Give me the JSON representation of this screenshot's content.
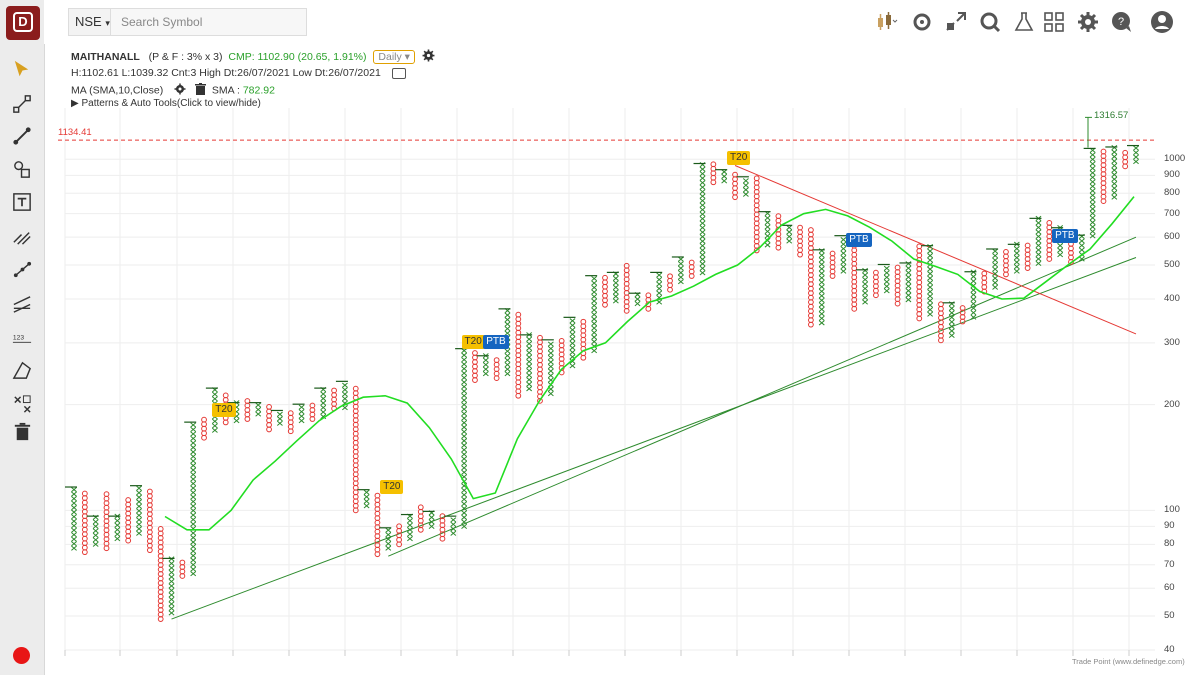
{
  "toolbar": {
    "exchange": "NSE",
    "search_placeholder": "Search Symbol",
    "icons": [
      "candle-chart-icon",
      "gear-alt-icon",
      "expand-icon",
      "settings-search-icon",
      "lab-icon",
      "layout-grid-icon",
      "gear-icon",
      "chat-icon",
      "user-icon"
    ]
  },
  "sidebar": {
    "tools": [
      "pointer-icon",
      "line-icon",
      "trend-line-icon",
      "shape-icon",
      "text-tool-icon",
      "fib-icon",
      "path-icon",
      "channel-icon",
      "measure-icon",
      "projection-icon",
      "magnet-icon",
      "trash-icon"
    ]
  },
  "info": {
    "symbol": "MAITHANALL",
    "params": "(P & F : 3% x 3)",
    "cmp": "CMP: 1102.90 (20.65, 1.91%)",
    "timeframe": "Daily",
    "ohlc": "H:1102.61 L:1039.32 Cnt:3 High Dt:26/07/2021 Low Dt:26/07/2021",
    "ma_label": "MA (SMA,10,Close)",
    "sma_label": "SMA :",
    "sma_value": "782.92",
    "patterns": "▶  Patterns & Auto Tools(Click to view/hide)"
  },
  "chart_data": {
    "type": "point-and-figure",
    "box_reversal": "3% x 3",
    "y_scale": "log",
    "ylim": [
      40,
      1400
    ],
    "y_ticks": [
      "1000",
      "900",
      "800",
      "700",
      "600",
      "500",
      "400",
      "300",
      "200",
      "100",
      "90",
      "80",
      "70",
      "60",
      "50",
      "40"
    ],
    "hline_label": "1134.41",
    "high_label": "1316.57",
    "columns": [
      {
        "t": "X",
        "lo": 78,
        "hi": 115
      },
      {
        "t": "O",
        "lo": 76,
        "hi": 112
      },
      {
        "t": "X",
        "lo": 80,
        "hi": 95
      },
      {
        "t": "O",
        "lo": 78,
        "hi": 112
      },
      {
        "t": "X",
        "lo": 83,
        "hi": 95
      },
      {
        "t": "O",
        "lo": 82,
        "hi": 108
      },
      {
        "t": "X",
        "lo": 86,
        "hi": 116
      },
      {
        "t": "O",
        "lo": 77,
        "hi": 112
      },
      {
        "t": "O",
        "lo": 49,
        "hi": 88
      },
      {
        "t": "X",
        "lo": 51,
        "hi": 72
      },
      {
        "t": "O",
        "lo": 65,
        "hi": 71
      },
      {
        "t": "X",
        "lo": 66,
        "hi": 176
      },
      {
        "t": "O",
        "lo": 161,
        "hi": 182
      },
      {
        "t": "X",
        "lo": 169,
        "hi": 220
      },
      {
        "t": "O",
        "lo": 178,
        "hi": 215
      },
      {
        "t": "X",
        "lo": 180,
        "hi": 200
      },
      {
        "t": "O",
        "lo": 182,
        "hi": 202
      },
      {
        "t": "X",
        "lo": 188,
        "hi": 200
      },
      {
        "t": "O",
        "lo": 170,
        "hi": 198
      },
      {
        "t": "X",
        "lo": 177,
        "hi": 190
      },
      {
        "t": "O",
        "lo": 168,
        "hi": 188
      },
      {
        "t": "X",
        "lo": 180,
        "hi": 198
      },
      {
        "t": "O",
        "lo": 182,
        "hi": 198
      },
      {
        "t": "X",
        "lo": 185,
        "hi": 220
      },
      {
        "t": "O",
        "lo": 195,
        "hi": 220
      },
      {
        "t": "X",
        "lo": 196,
        "hi": 230
      },
      {
        "t": "O",
        "lo": 100,
        "hi": 222
      },
      {
        "t": "X",
        "lo": 103,
        "hi": 113
      },
      {
        "t": "O",
        "lo": 75,
        "hi": 109
      },
      {
        "t": "X",
        "lo": 78,
        "hi": 88
      },
      {
        "t": "O",
        "lo": 80,
        "hi": 89
      },
      {
        "t": "X",
        "lo": 83,
        "hi": 96
      },
      {
        "t": "O",
        "lo": 88,
        "hi": 102
      },
      {
        "t": "X",
        "lo": 90,
        "hi": 98
      },
      {
        "t": "O",
        "lo": 83,
        "hi": 96
      },
      {
        "t": "X",
        "lo": 86,
        "hi": 95
      },
      {
        "t": "X",
        "lo": 90,
        "hi": 285
      },
      {
        "t": "O",
        "lo": 235,
        "hi": 281
      },
      {
        "t": "X",
        "lo": 245,
        "hi": 272
      },
      {
        "t": "O",
        "lo": 238,
        "hi": 270
      },
      {
        "t": "X",
        "lo": 245,
        "hi": 370
      },
      {
        "t": "O",
        "lo": 212,
        "hi": 365
      },
      {
        "t": "X",
        "lo": 222,
        "hi": 312
      },
      {
        "t": "O",
        "lo": 205,
        "hi": 310
      },
      {
        "t": "X",
        "lo": 215,
        "hi": 302
      },
      {
        "t": "O",
        "lo": 247,
        "hi": 300
      },
      {
        "t": "X",
        "lo": 258,
        "hi": 350
      },
      {
        "t": "O",
        "lo": 272,
        "hi": 348
      },
      {
        "t": "X",
        "lo": 285,
        "hi": 460
      },
      {
        "t": "O",
        "lo": 385,
        "hi": 455
      },
      {
        "t": "X",
        "lo": 395,
        "hi": 470
      },
      {
        "t": "O",
        "lo": 370,
        "hi": 492
      },
      {
        "t": "X",
        "lo": 388,
        "hi": 410
      },
      {
        "t": "O",
        "lo": 375,
        "hi": 412
      },
      {
        "t": "X",
        "lo": 392,
        "hi": 470
      },
      {
        "t": "O",
        "lo": 425,
        "hi": 468
      },
      {
        "t": "X",
        "lo": 448,
        "hi": 520
      },
      {
        "t": "O",
        "lo": 465,
        "hi": 512
      },
      {
        "t": "X",
        "lo": 475,
        "hi": 960
      },
      {
        "t": "O",
        "lo": 860,
        "hi": 955
      },
      {
        "t": "X",
        "lo": 868,
        "hi": 922
      },
      {
        "t": "O",
        "lo": 780,
        "hi": 910
      },
      {
        "t": "X",
        "lo": 795,
        "hi": 880
      },
      {
        "t": "O",
        "lo": 550,
        "hi": 870
      },
      {
        "t": "X",
        "lo": 570,
        "hi": 700
      },
      {
        "t": "O",
        "lo": 560,
        "hi": 695
      },
      {
        "t": "X",
        "lo": 585,
        "hi": 640
      },
      {
        "t": "O",
        "lo": 535,
        "hi": 630
      },
      {
        "t": "O",
        "lo": 338,
        "hi": 620
      },
      {
        "t": "X",
        "lo": 342,
        "hi": 545
      },
      {
        "t": "O",
        "lo": 465,
        "hi": 540
      },
      {
        "t": "X",
        "lo": 480,
        "hi": 598
      },
      {
        "t": "O",
        "lo": 375,
        "hi": 582
      },
      {
        "t": "X",
        "lo": 392,
        "hi": 478
      },
      {
        "t": "O",
        "lo": 410,
        "hi": 480
      },
      {
        "t": "X",
        "lo": 422,
        "hi": 495
      },
      {
        "t": "O",
        "lo": 388,
        "hi": 490
      },
      {
        "t": "X",
        "lo": 398,
        "hi": 500
      },
      {
        "t": "O",
        "lo": 352,
        "hi": 560
      },
      {
        "t": "X",
        "lo": 362,
        "hi": 560
      },
      {
        "t": "O",
        "lo": 305,
        "hi": 385
      },
      {
        "t": "X",
        "lo": 315,
        "hi": 385
      },
      {
        "t": "O",
        "lo": 345,
        "hi": 380
      },
      {
        "t": "X",
        "lo": 355,
        "hi": 472
      },
      {
        "t": "O",
        "lo": 420,
        "hi": 470
      },
      {
        "t": "X",
        "lo": 432,
        "hi": 548
      },
      {
        "t": "O",
        "lo": 470,
        "hi": 545
      },
      {
        "t": "X",
        "lo": 480,
        "hi": 565
      },
      {
        "t": "O",
        "lo": 490,
        "hi": 562
      },
      {
        "t": "X",
        "lo": 505,
        "hi": 670
      },
      {
        "t": "O",
        "lo": 520,
        "hi": 660
      },
      {
        "t": "X",
        "lo": 535,
        "hi": 630
      },
      {
        "t": "O",
        "lo": 510,
        "hi": 615
      },
      {
        "t": "X",
        "lo": 520,
        "hi": 600
      },
      {
        "t": "X",
        "lo": 605,
        "hi": 1060
      },
      {
        "t": "O",
        "lo": 760,
        "hi": 1040
      },
      {
        "t": "X",
        "lo": 780,
        "hi": 1070
      },
      {
        "t": "O",
        "lo": 955,
        "hi": 1050
      },
      {
        "t": "X",
        "lo": 985,
        "hi": 1080
      }
    ],
    "sma": [
      96,
      88,
      88,
      100,
      122,
      138,
      158,
      180,
      198,
      210,
      212,
      202,
      172,
      140,
      108,
      112,
      160,
      205,
      252,
      285,
      300,
      345,
      392,
      408,
      435,
      470,
      500,
      560,
      650,
      700,
      720,
      690,
      640,
      585,
      520,
      495,
      470,
      420,
      400,
      402,
      448,
      500,
      555,
      655,
      782.92
    ],
    "trend_line_1": {
      "from": [
        9,
        49
      ],
      "to": [
        98,
        525
      ]
    },
    "trend_line_2": {
      "from": [
        29,
        74
      ],
      "to": [
        98,
        600
      ]
    },
    "resistance_line": {
      "from": [
        61,
        960
      ],
      "to": [
        98,
        318
      ]
    },
    "tags": [
      {
        "label": "T20",
        "col": 13.5,
        "price": 192
      },
      {
        "label": "T20",
        "col": 29,
        "price": 116
      },
      {
        "label": "T20",
        "col": 36.5,
        "price": 300
      },
      {
        "label": "PTB",
        "col": 38.5,
        "price": 300
      },
      {
        "label": "T20",
        "col": 61,
        "price": 1005
      },
      {
        "label": "PTB",
        "col": 72,
        "price": 585
      },
      {
        "label": "PTB",
        "col": 91,
        "price": 600
      }
    ],
    "colors": {
      "x": "#2e8b2e",
      "o": "#e53935",
      "sma": "#22dd22",
      "trend": "#2e8b2e",
      "resistance": "#e53935",
      "hline": "#e53935"
    }
  },
  "footer": "Trade Point (www.definedge.com)"
}
